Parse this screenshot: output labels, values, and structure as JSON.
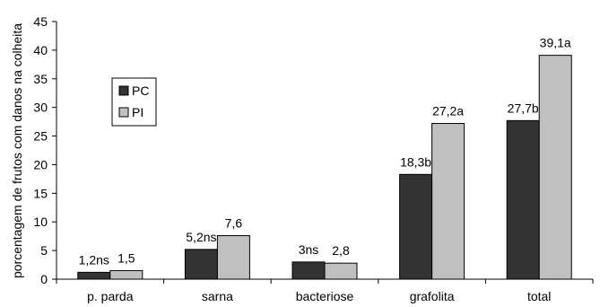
{
  "chart_data": {
    "type": "bar",
    "title": "",
    "xlabel": "",
    "ylabel": "porcentagem de frutos com danos na colheita",
    "ylim": [
      0,
      45
    ],
    "yticks": [
      0,
      5,
      10,
      15,
      20,
      25,
      30,
      35,
      40,
      45
    ],
    "grid": false,
    "legend_position": "upper-left",
    "categories": [
      "p. parda",
      "sarna",
      "bacteriose",
      "grafolita",
      "total"
    ],
    "series": [
      {
        "name": "PC",
        "color": "#333333",
        "values": [
          1.2,
          5.2,
          3.0,
          18.3,
          27.7
        ],
        "labels": [
          "1,2ns",
          "5,2ns",
          "3ns",
          "18,3b",
          "27,7b"
        ]
      },
      {
        "name": "PI",
        "color": "#c0c0c0",
        "values": [
          1.5,
          7.6,
          2.8,
          27.2,
          39.1
        ],
        "labels": [
          "1,5",
          "7,6",
          "2,8",
          "27,2a",
          "39,1a"
        ]
      }
    ]
  }
}
